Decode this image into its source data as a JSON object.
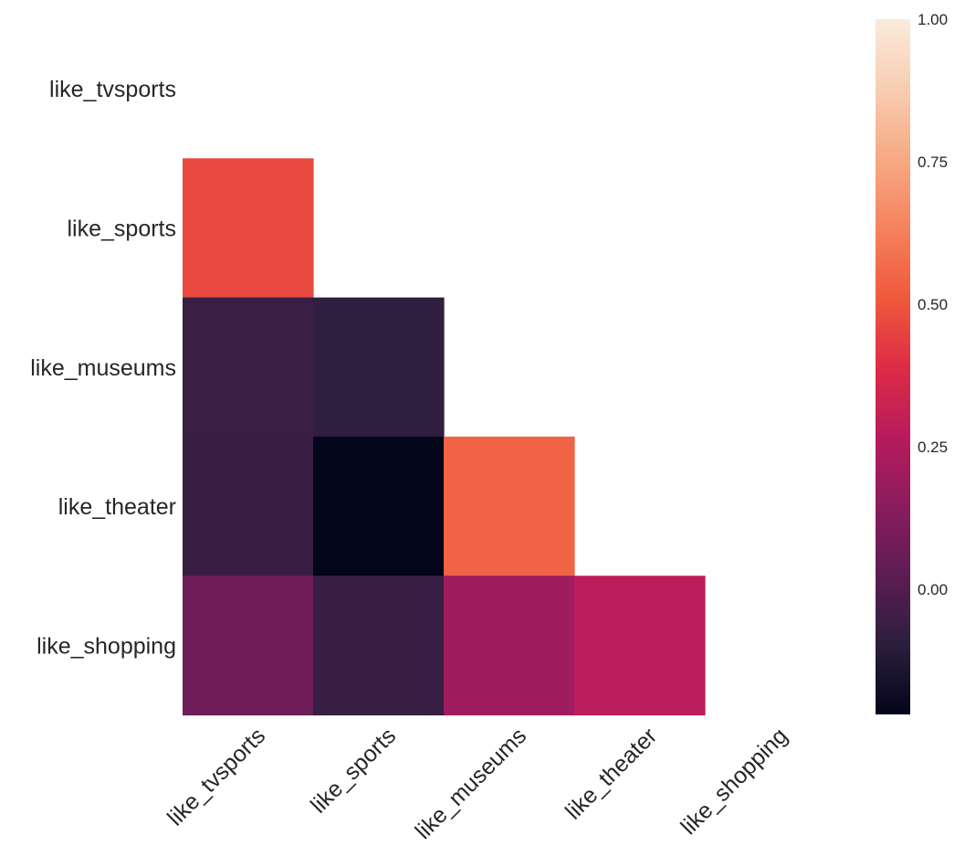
{
  "chart_data": {
    "type": "heatmap",
    "title": "",
    "xlabel": "",
    "ylabel": "",
    "rows": [
      "like_tvsports",
      "like_sports",
      "like_museums",
      "like_theater",
      "like_shopping"
    ],
    "columns": [
      "like_tvsports",
      "like_sports",
      "like_museums",
      "like_theater",
      "like_shopping"
    ],
    "mask": "upper triangle including diagonal",
    "cells": [
      {
        "row": 1,
        "col": 0,
        "value": 0.47
      },
      {
        "row": 2,
        "col": 0,
        "value": -0.06
      },
      {
        "row": 2,
        "col": 1,
        "value": -0.09
      },
      {
        "row": 3,
        "col": 0,
        "value": -0.07
      },
      {
        "row": 3,
        "col": 1,
        "value": -0.22
      },
      {
        "row": 3,
        "col": 2,
        "value": 0.54
      },
      {
        "row": 4,
        "col": 0,
        "value": 0.07
      },
      {
        "row": 4,
        "col": 1,
        "value": -0.07
      },
      {
        "row": 4,
        "col": 2,
        "value": 0.2
      },
      {
        "row": 4,
        "col": 3,
        "value": 0.28
      }
    ],
    "colorbar": {
      "colormap": "rocket",
      "range": [
        -0.22,
        1.0
      ],
      "ticks": [
        "1.00",
        "0.75",
        "0.50",
        "0.25",
        "0.00"
      ],
      "tick_values": [
        1.0,
        0.75,
        0.5,
        0.25,
        0.0
      ]
    },
    "colormap_stops": [
      {
        "v": 0.0,
        "c": "#03051a"
      },
      {
        "v": 0.1,
        "c": "#2c1e3d"
      },
      {
        "v": 0.2,
        "c": "#5c1d54"
      },
      {
        "v": 0.3,
        "c": "#8b1c5e"
      },
      {
        "v": 0.4,
        "c": "#b81b5d"
      },
      {
        "v": 0.5,
        "c": "#dd2c45"
      },
      {
        "v": 0.6,
        "c": "#ef5a3c"
      },
      {
        "v": 0.7,
        "c": "#f5825e"
      },
      {
        "v": 0.8,
        "c": "#f6aa84"
      },
      {
        "v": 0.9,
        "c": "#f8cdb1"
      },
      {
        "v": 1.0,
        "c": "#faebdd"
      }
    ]
  }
}
